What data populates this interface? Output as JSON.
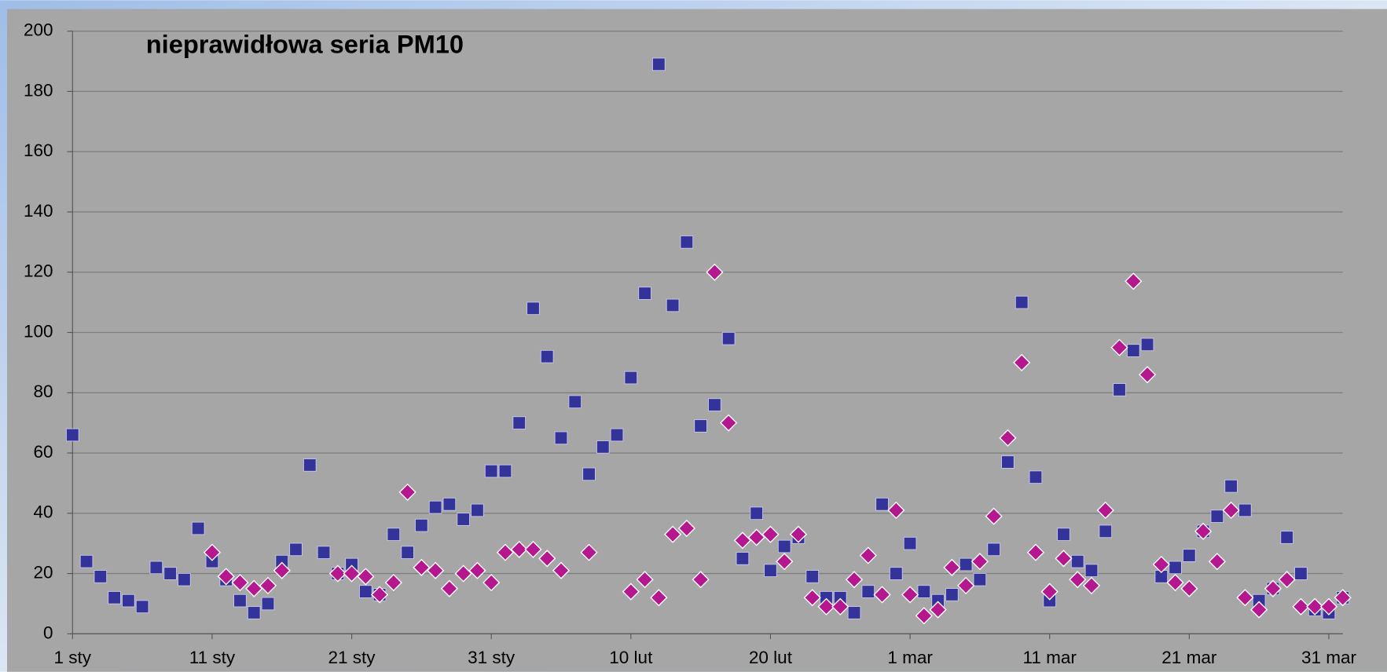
{
  "chart_data": {
    "type": "scatter",
    "title": "nieprawidłowa seria PM10",
    "categories": [
      "1 sty",
      null,
      null,
      null,
      null,
      null,
      null,
      null,
      null,
      null,
      "11 sty",
      null,
      null,
      null,
      null,
      null,
      null,
      null,
      null,
      null,
      "21 sty",
      null,
      null,
      null,
      null,
      null,
      null,
      null,
      null,
      null,
      "31 sty",
      null,
      null,
      null,
      null,
      null,
      null,
      null,
      null,
      null,
      "10 lut",
      null,
      null,
      null,
      null,
      null,
      null,
      null,
      null,
      null,
      "20 lut",
      null,
      null,
      null,
      null,
      null,
      null,
      null,
      null,
      null,
      "1 mar",
      null,
      null,
      null,
      null,
      null,
      null,
      null,
      null,
      null,
      "11 mar",
      null,
      null,
      null,
      null,
      null,
      null,
      null,
      null,
      null,
      "21 mar",
      null,
      null,
      null,
      null,
      null,
      null,
      null,
      null,
      null,
      "31 mar",
      null
    ],
    "series": [
      {
        "color": "#333399",
        "marker": "square",
        "values": [
          66,
          24,
          19,
          12,
          11,
          9,
          22,
          20,
          18,
          35,
          24,
          18,
          11,
          7,
          10,
          24,
          28,
          56,
          27,
          20,
          23,
          14,
          13,
          33,
          27,
          36,
          42,
          43,
          38,
          41,
          54,
          54,
          70,
          108,
          92,
          65,
          77,
          53,
          62,
          66,
          85,
          113,
          189,
          109,
          130,
          69,
          76,
          98,
          25,
          40,
          21,
          29,
          32,
          19,
          12,
          12,
          7,
          14,
          43,
          20,
          30,
          14,
          11,
          13,
          23,
          18,
          28,
          57,
          110,
          52,
          11,
          33,
          24,
          21,
          34,
          81,
          94,
          96,
          19,
          22,
          26,
          34,
          39,
          49,
          41,
          11,
          15,
          32,
          20,
          8,
          7,
          12
        ]
      },
      {
        "color": "#b5178e",
        "marker": "diamond",
        "values": [
          null,
          null,
          null,
          null,
          null,
          null,
          null,
          null,
          null,
          null,
          27,
          19,
          17,
          15,
          16,
          21,
          null,
          null,
          null,
          20,
          20,
          19,
          13,
          17,
          47,
          22,
          21,
          15,
          20,
          21,
          17,
          27,
          28,
          28,
          25,
          21,
          null,
          27,
          null,
          null,
          14,
          18,
          12,
          33,
          35,
          18,
          120,
          70,
          31,
          32,
          33,
          24,
          33,
          12,
          9,
          9,
          18,
          26,
          13,
          41,
          13,
          6,
          8,
          22,
          16,
          24,
          39,
          65,
          90,
          27,
          14,
          25,
          18,
          16,
          41,
          95,
          117,
          86,
          23,
          17,
          15,
          34,
          24,
          41,
          12,
          8,
          15,
          18,
          9,
          9,
          9,
          12
        ]
      }
    ],
    "ylim": [
      0,
      200
    ],
    "yticks": [
      0,
      20,
      40,
      60,
      80,
      100,
      120,
      140,
      160,
      180,
      200
    ],
    "grid": true
  }
}
